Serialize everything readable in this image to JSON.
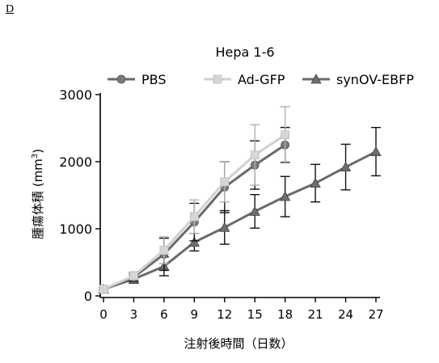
{
  "panel_label": "D",
  "chart_data": {
    "type": "line",
    "title": "Hepa 1-6",
    "xlabel": "注射後時間（日数）",
    "ylabel_main": "腫瘍体積 (mm",
    "ylabel_sup": "3",
    "ylabel_close": ")",
    "xlim": [
      0,
      27
    ],
    "ylim": [
      0,
      3000
    ],
    "xticks": [
      "0",
      "3",
      "6",
      "9",
      "12",
      "15",
      "18",
      "21",
      "24",
      "27"
    ],
    "yticks": [
      "0",
      "1000",
      "2000",
      "3000"
    ],
    "legend_position": "top",
    "series": [
      {
        "name": "PBS",
        "marker": "circle",
        "color": "#7a7a7a",
        "x": [
          0,
          3,
          6,
          9,
          12,
          15,
          18
        ],
        "y": [
          100,
          280,
          620,
          1100,
          1620,
          1950,
          2250
        ],
        "err": [
          20,
          60,
          240,
          280,
          380,
          360,
          260
        ]
      },
      {
        "name": "Ad-GFP",
        "marker": "square",
        "color": "#d6d6d6",
        "x": [
          0,
          3,
          6,
          9,
          12,
          15,
          18
        ],
        "y": [
          100,
          300,
          680,
          1180,
          1700,
          2100,
          2400
        ],
        "err": [
          20,
          60,
          200,
          250,
          300,
          450,
          420
        ]
      },
      {
        "name": "synOV-EBFP",
        "marker": "triangle",
        "color": "#6e6e6e",
        "x": [
          0,
          3,
          6,
          9,
          12,
          15,
          18,
          21,
          24,
          27
        ],
        "y": [
          100,
          250,
          440,
          800,
          1020,
          1260,
          1480,
          1680,
          1920,
          2150
        ],
        "err": [
          20,
          60,
          140,
          130,
          250,
          250,
          300,
          280,
          340,
          360
        ]
      }
    ]
  }
}
